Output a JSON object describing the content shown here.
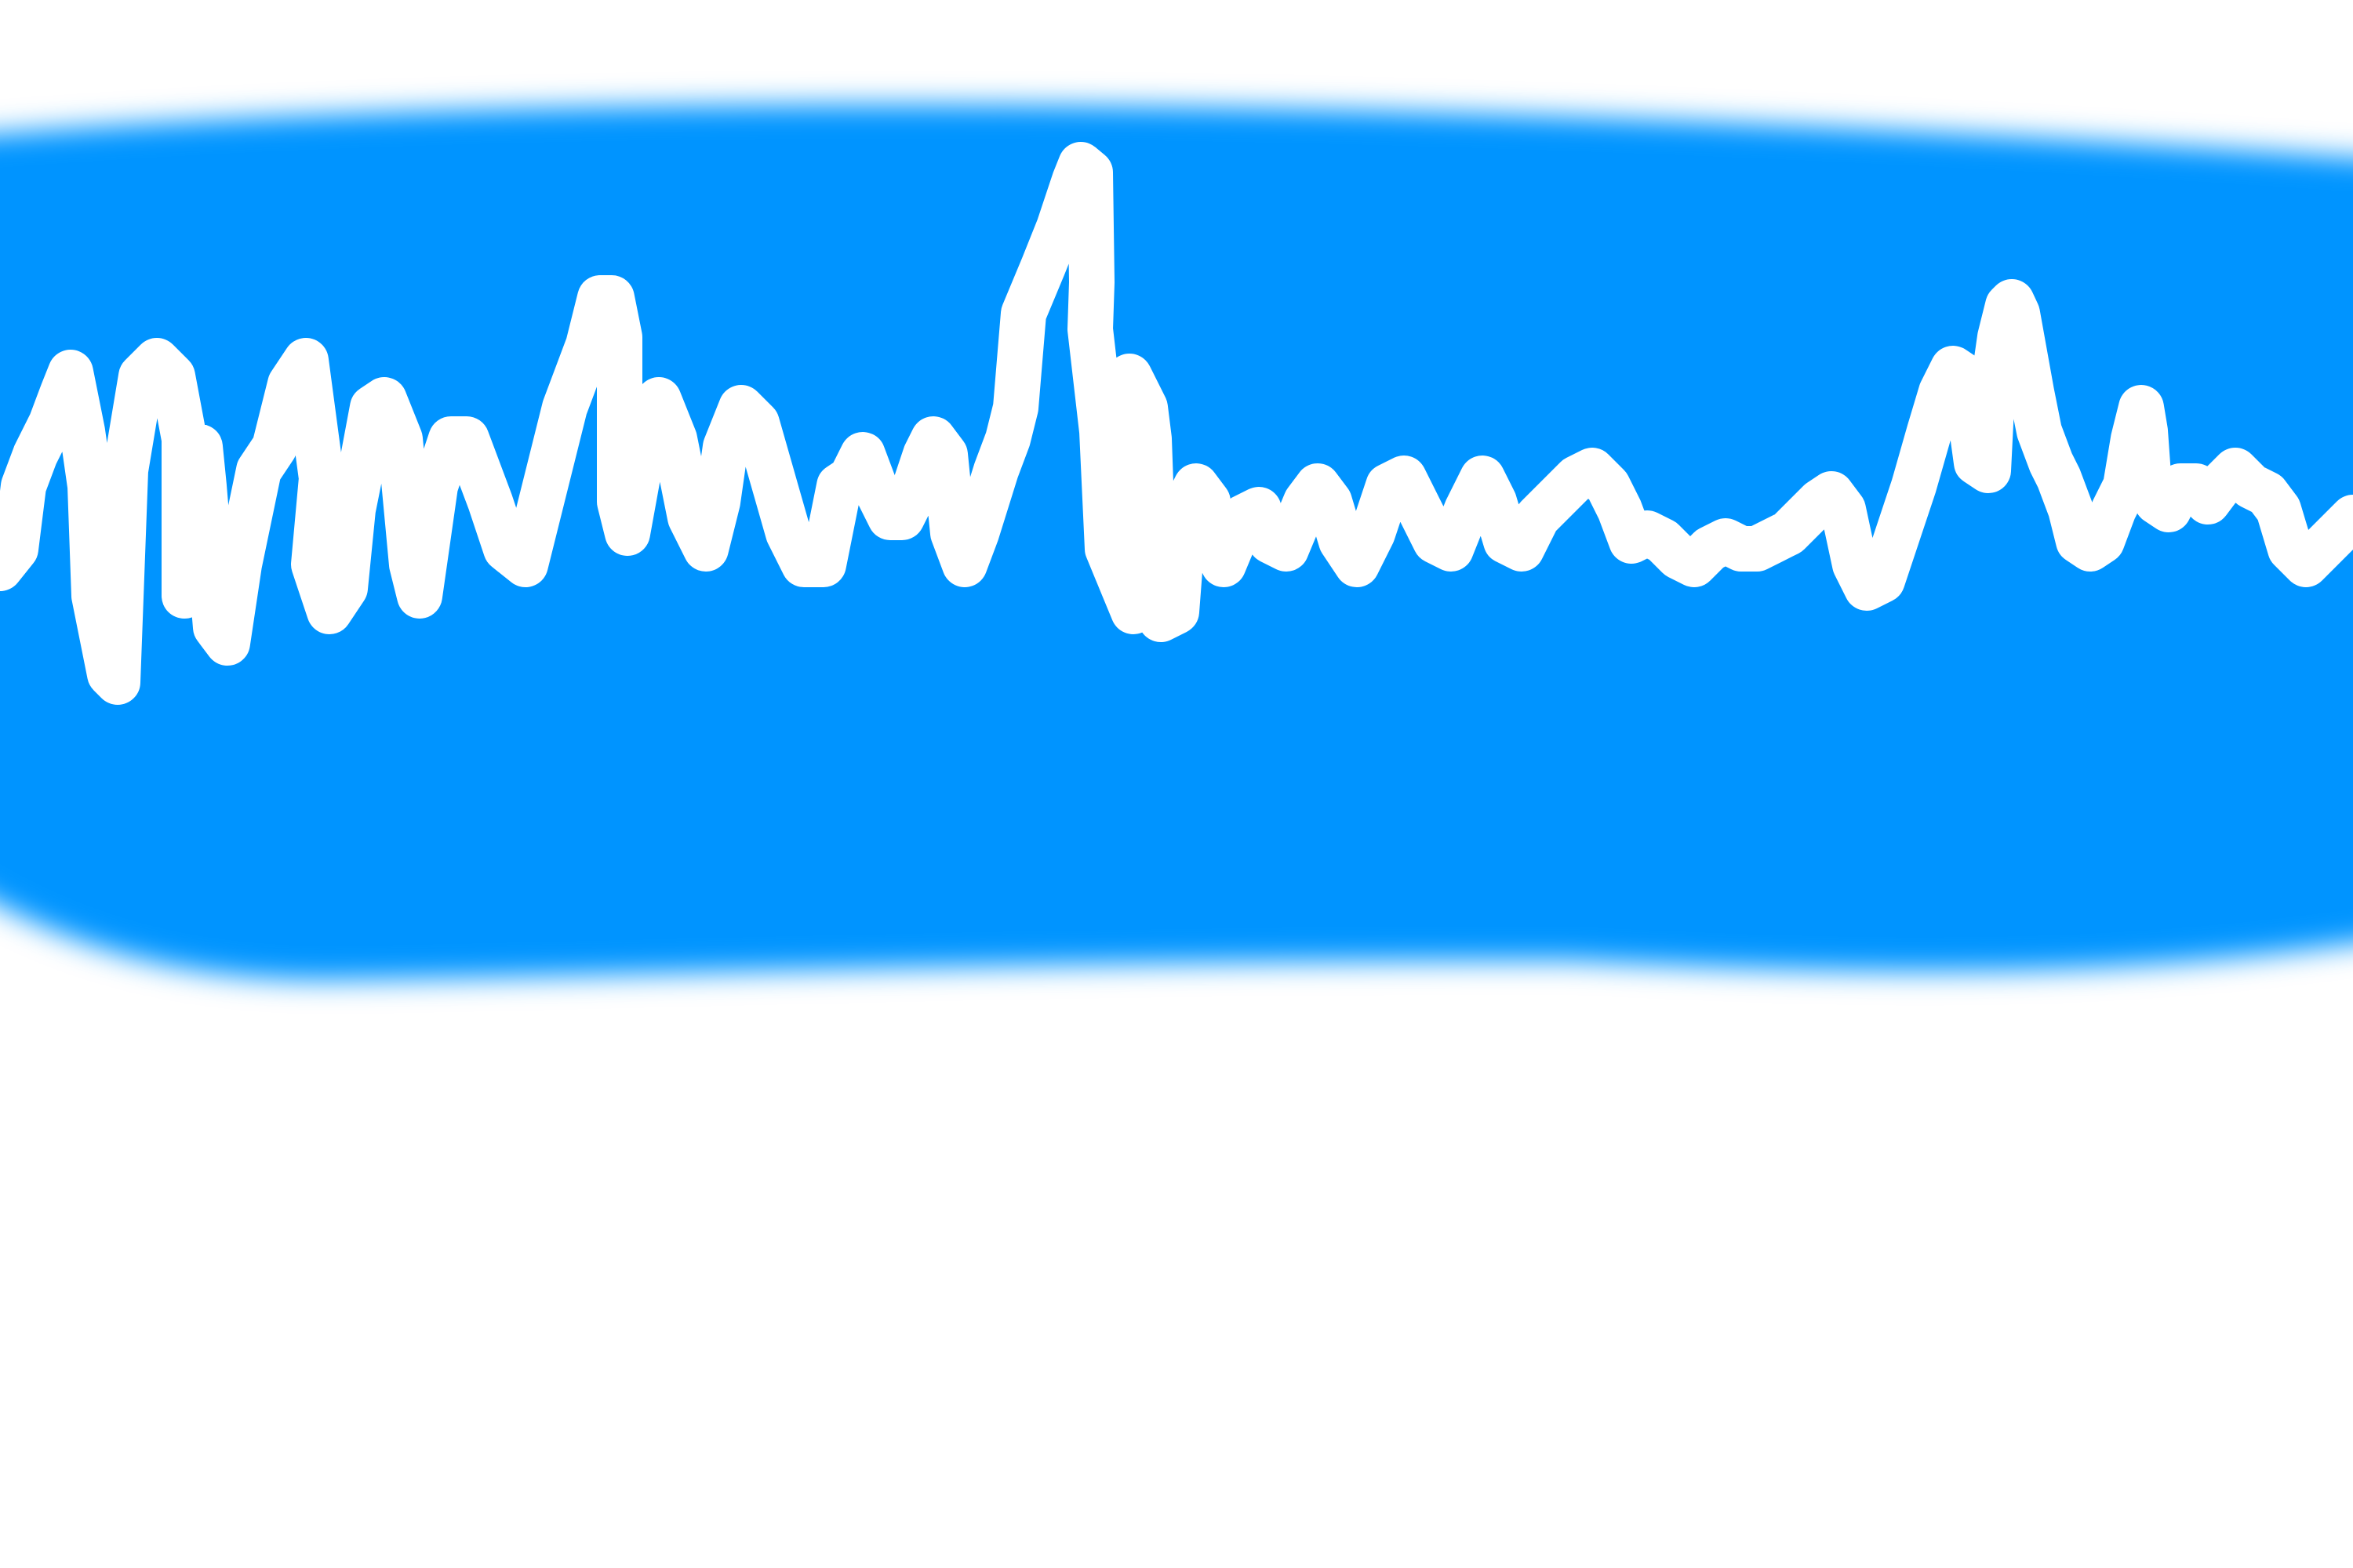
{
  "colors": {
    "background": "#ffffff",
    "band": "#0394ff",
    "stroke": "#ffffff"
  },
  "elements": {
    "band": "blurred-blue-band",
    "stroke": "white-zigzag-stroke"
  }
}
